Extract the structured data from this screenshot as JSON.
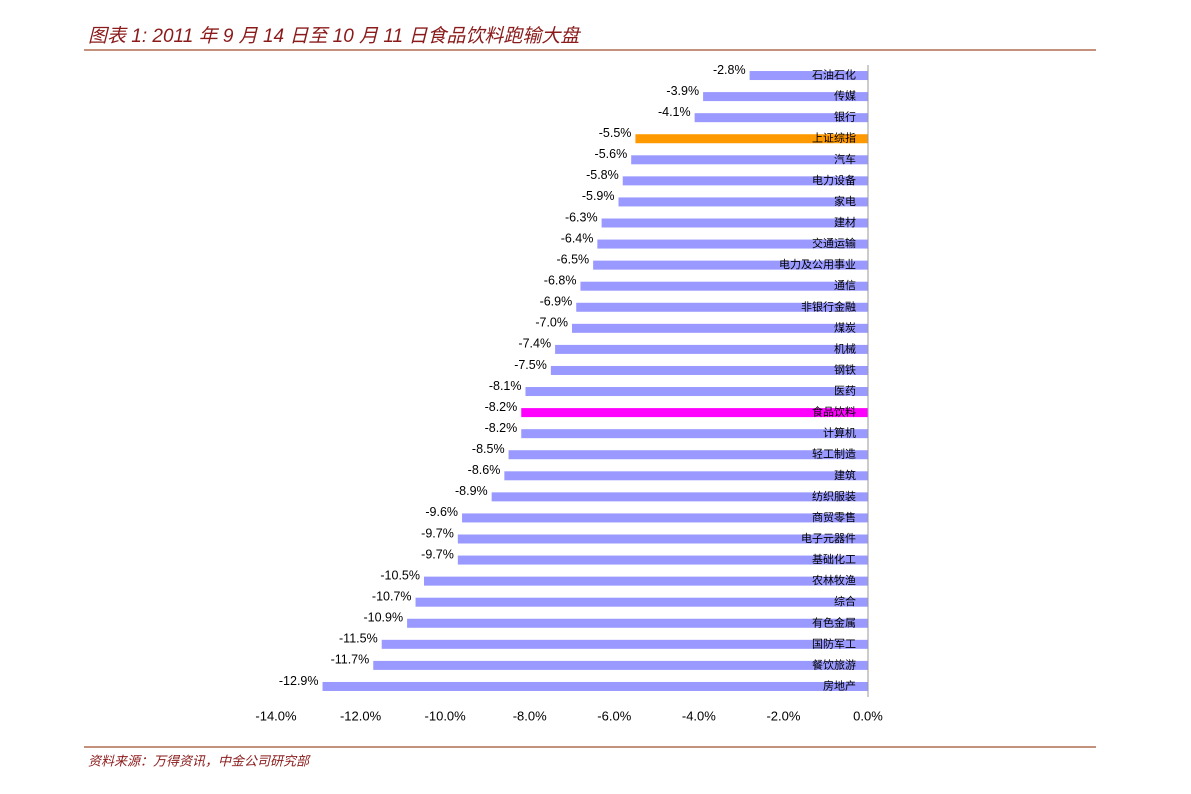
{
  "chart_data": {
    "type": "bar",
    "title": "图表 1: 2011 年 9 月 14 日至 10 月 11 日食品饮料跑输大盘",
    "source": "资料来源：万得资讯，中金公司研究部",
    "categories": [
      "石油石化",
      "传媒",
      "银行",
      "上证综指",
      "汽车",
      "电力设备",
      "家电",
      "建材",
      "交通运输",
      "电力及公用事业",
      "通信",
      "非银行金融",
      "煤炭",
      "机械",
      "钢铁",
      "医药",
      "食品饮料",
      "计算机",
      "轻工制造",
      "建筑",
      "纺织服装",
      "商贸零售",
      "电子元器件",
      "基础化工",
      "农林牧渔",
      "综合",
      "有色金属",
      "国防军工",
      "餐饮旅游",
      "房地产"
    ],
    "values": [
      -2.8,
      -3.9,
      -4.1,
      -5.5,
      -5.6,
      -5.8,
      -5.9,
      -6.3,
      -6.4,
      -6.5,
      -6.8,
      -6.9,
      -7.0,
      -7.4,
      -7.5,
      -8.1,
      -8.2,
      -8.2,
      -8.5,
      -8.6,
      -8.9,
      -9.6,
      -9.7,
      -9.7,
      -10.5,
      -10.7,
      -10.9,
      -11.5,
      -11.7,
      -12.9
    ],
    "value_labels": [
      "-2.8%",
      "-3.9%",
      "-4.1%",
      "-5.5%",
      "-5.6%",
      "-5.8%",
      "-5.9%",
      "-6.3%",
      "-6.4%",
      "-6.5%",
      "-6.8%",
      "-6.9%",
      "-7.0%",
      "-7.4%",
      "-7.5%",
      "-8.1%",
      "-8.2%",
      "-8.2%",
      "-8.5%",
      "-8.6%",
      "-8.9%",
      "-9.6%",
      "-9.7%",
      "-9.7%",
      "-10.5%",
      "-10.7%",
      "-10.9%",
      "-11.5%",
      "-11.7%",
      "-12.9%"
    ],
    "colors": [
      "#9999ff",
      "#9999ff",
      "#9999ff",
      "#ff9900",
      "#9999ff",
      "#9999ff",
      "#9999ff",
      "#9999ff",
      "#9999ff",
      "#9999ff",
      "#9999ff",
      "#9999ff",
      "#9999ff",
      "#9999ff",
      "#9999ff",
      "#9999ff",
      "#ff00ff",
      "#9999ff",
      "#9999ff",
      "#9999ff",
      "#9999ff",
      "#9999ff",
      "#9999ff",
      "#9999ff",
      "#9999ff",
      "#9999ff",
      "#9999ff",
      "#9999ff",
      "#9999ff",
      "#9999ff"
    ],
    "xlim": [
      -14,
      0
    ],
    "xticks": [
      {
        "value": -14,
        "label": "-14.0%"
      },
      {
        "value": -12,
        "label": "-12.0%"
      },
      {
        "value": -10,
        "label": "-10.0%"
      },
      {
        "value": -8,
        "label": "-8.0%"
      },
      {
        "value": -6,
        "label": "-6.0%"
      },
      {
        "value": -4,
        "label": "-4.0%"
      },
      {
        "value": -2,
        "label": "-2.0%"
      },
      {
        "value": 0,
        "label": "0.0%"
      }
    ]
  }
}
